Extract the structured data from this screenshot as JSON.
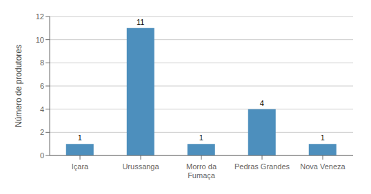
{
  "chart_data": {
    "type": "bar",
    "categories": [
      "Içara",
      "Urussanga",
      "Morro da\nFumaça",
      "Pedras Grandes",
      "Nova Veneza"
    ],
    "values": [
      1,
      11,
      1,
      4,
      1
    ],
    "color": "#4d8fbd",
    "ylabel": "Número de produtores",
    "ylim": [
      0,
      12
    ],
    "yticks": [
      0,
      2,
      4,
      6,
      8,
      10,
      12
    ],
    "grid": true,
    "data_labels": true
  }
}
